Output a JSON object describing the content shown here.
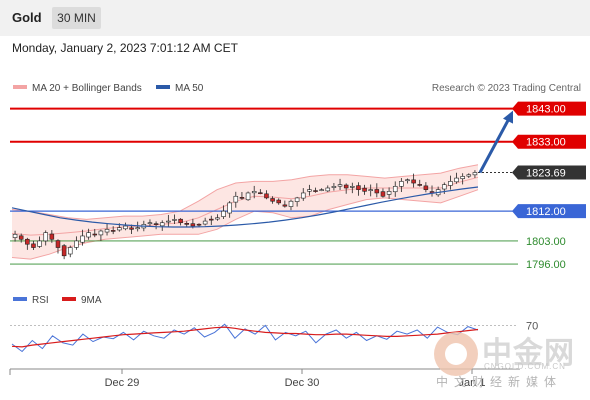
{
  "header": {
    "asset": "Gold",
    "timeframe": "30 MIN",
    "datetime": "Monday, January 2, 2023 7:01:12 AM CET"
  },
  "legend": {
    "bollinger_label": "MA 20 + Bollinger Bands",
    "ma50_label": "MA 50",
    "credit": "Research © 2023 Trading Central",
    "rsi_label": "RSI",
    "rsi_ma_label": "9MA"
  },
  "colors": {
    "resistance": "#e00000",
    "support": "#3a66d6",
    "support_minor": "#2e8b2e",
    "arrow": "#2b5aa8",
    "bollinger": "#f3a4a4",
    "ma50": "#2b5aa8",
    "rsi": "#4a74d8",
    "rsi_ma": "#d81c1c",
    "candle_up": "#ffffff",
    "candle_down": "#c62828",
    "wick": "#222222"
  },
  "watermark": {
    "name_cn": "中金网",
    "url": "CNGOLD.COM.CN",
    "sub_cn": "中文财经新媒体"
  },
  "chart_data": {
    "type": "candlestick",
    "series": [
      {
        "name": "MA 20 + Bollinger Bands"
      },
      {
        "name": "MA 50"
      }
    ],
    "x_ticks": [
      "Dec 29",
      "Dec 30",
      "Jan 1"
    ],
    "ylim": [
      1793,
      1845
    ],
    "levels": [
      {
        "value": 1843.0,
        "label": "1843.00",
        "kind": "resistance"
      },
      {
        "value": 1833.0,
        "label": "1833.00",
        "kind": "resistance"
      },
      {
        "value": 1823.69,
        "label": "1823.69",
        "kind": "last"
      },
      {
        "value": 1812.0,
        "label": "1812.00",
        "kind": "support"
      },
      {
        "value": 1803.0,
        "label": "1803.00",
        "kind": "support_minor"
      },
      {
        "value": 1796.0,
        "label": "1796.00",
        "kind": "support_minor"
      }
    ],
    "close_path": [
      1805,
      1803.5,
      1802,
      1801,
      1803,
      1805.5,
      1803.5,
      1801,
      1798.5,
      1801,
      1803,
      1804.5,
      1805.5,
      1805,
      1806,
      1806.5,
      1806,
      1807,
      1807.5,
      1806.5,
      1807,
      1808,
      1808.5,
      1808,
      1808.5,
      1809,
      1809.5,
      1808.5,
      1808,
      1807.5,
      1808,
      1809,
      1809.5,
      1810,
      1812,
      1814.5,
      1816.5,
      1816,
      1817.5,
      1818,
      1817.5,
      1816,
      1815,
      1814.5,
      1813.5,
      1815,
      1816,
      1817.5,
      1818.5,
      1818,
      1818.5,
      1819,
      1819.5,
      1820,
      1819,
      1819.5,
      1818.5,
      1818,
      1818.5,
      1817.5,
      1816.5,
      1818,
      1819.5,
      1821,
      1821.5,
      1820.5,
      1820,
      1818.5,
      1817.5,
      1818.5,
      1820,
      1821,
      1822,
      1822.5,
      1823,
      1823.69
    ],
    "ma50_path": [
      1813,
      1812,
      1811,
      1810,
      1809.3,
      1808.7,
      1808.2,
      1807.8,
      1807.5,
      1807.3,
      1807.2,
      1807.2,
      1807.3,
      1807.5,
      1807.8,
      1808.2,
      1808.7,
      1809.3,
      1810,
      1810.8,
      1811.7,
      1812.7,
      1813.7,
      1814.7,
      1815.6,
      1816.5,
      1817.3,
      1818,
      1818.7,
      1819.3
    ],
    "bollinger_band": {
      "upper": [
        1812.5,
        1812,
        1811,
        1810,
        1809.5,
        1810,
        1810.5,
        1810.5,
        1811,
        1812,
        1815,
        1818.5,
        1820.5,
        1821,
        1821,
        1821.5,
        1822.5,
        1823,
        1823,
        1822.5,
        1822,
        1822.5,
        1823,
        1823.5,
        1825,
        1826
      ],
      "lower": [
        1798,
        1797.5,
        1799,
        1801,
        1802.5,
        1803.5,
        1804,
        1804.5,
        1805,
        1805,
        1805,
        1806.5,
        1809.5,
        1812,
        1811.5,
        1810,
        1810.5,
        1812.5,
        1814,
        1815.5,
        1816,
        1815.5,
        1815,
        1814.5,
        1816.5,
        1818.5
      ]
    },
    "forecast_arrow": {
      "from": 1823.69,
      "to": 1843.0
    },
    "rsi": {
      "ylim": [
        0,
        100
      ],
      "level": 70,
      "rsi_values": [
        38,
        25,
        44,
        30,
        52,
        40,
        36,
        55,
        42,
        50,
        47,
        58,
        45,
        60,
        52,
        48,
        62,
        55,
        66,
        50,
        58,
        72,
        48,
        64,
        55,
        70,
        45,
        58,
        52,
        60,
        40,
        55,
        62,
        48,
        58,
        44,
        52,
        46,
        60,
        55,
        62,
        48,
        67,
        58,
        54,
        68,
        62
      ],
      "ma_values": [
        34,
        33,
        36,
        38,
        40,
        42,
        44,
        46,
        48,
        50,
        52,
        54,
        55,
        56,
        57,
        58,
        59,
        60,
        62,
        64,
        66,
        67,
        65,
        62,
        60,
        58,
        57,
        56,
        56,
        55,
        54,
        54,
        55,
        55,
        54,
        53,
        52,
        51,
        51,
        52,
        53,
        54,
        55,
        57,
        59,
        61,
        63
      ]
    }
  }
}
